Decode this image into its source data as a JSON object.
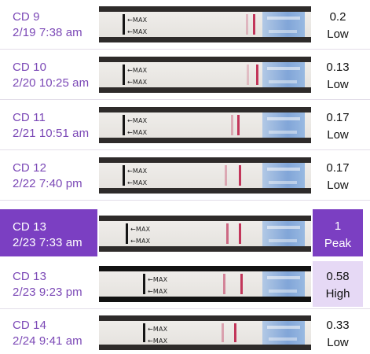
{
  "colors": {
    "accent": "#7b3fc2",
    "date_text": "#7b48b6",
    "high_bg": "#e6d9f5",
    "test_line": "#c95a78"
  },
  "test_label": "MAX",
  "readings": [
    {
      "cd": "CD 9",
      "date": "2/19 7:38 am",
      "value": "0.2",
      "level": "Low",
      "state": "normal"
    },
    {
      "cd": "CD 10",
      "date": "2/20 10:25 am",
      "value": "0.13",
      "level": "Low",
      "state": "normal"
    },
    {
      "cd": "CD 11",
      "date": "2/21 10:51 am",
      "value": "0.17",
      "level": "Low",
      "state": "normal"
    },
    {
      "cd": "CD 12",
      "date": "2/22 7:40 pm",
      "value": "0.17",
      "level": "Low",
      "state": "normal"
    },
    {
      "cd": "CD 13",
      "date": "2/23 7:33 am",
      "value": "1",
      "level": "Peak",
      "state": "selected"
    },
    {
      "cd": "CD 13",
      "date": "2/23 9:23 pm",
      "value": "0.58",
      "level": "High",
      "state": "high"
    },
    {
      "cd": "CD 14",
      "date": "2/24 9:41 am",
      "value": "0.33",
      "level": "Low",
      "state": "normal"
    }
  ]
}
